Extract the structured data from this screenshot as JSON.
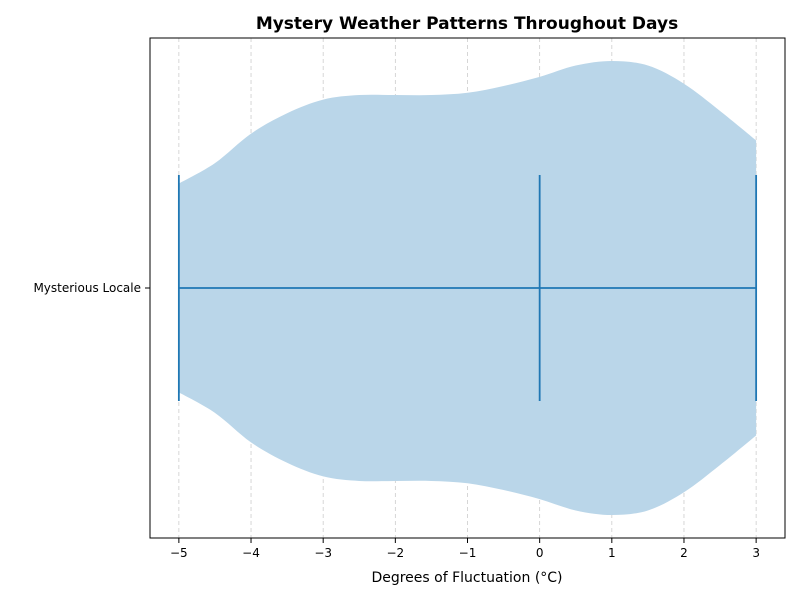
{
  "chart_data": {
    "type": "violin",
    "orientation": "horizontal",
    "title": "Mystery Weather Patterns Throughout Days",
    "xlabel": "Degrees of Fluctuation (°C)",
    "ylabel": "",
    "categories": [
      "Mysterious Locale"
    ],
    "xlim": [
      -5.4,
      3.4
    ],
    "xticks": [
      -5,
      -4,
      -3,
      -2,
      -1,
      0,
      1,
      2,
      3
    ],
    "xtick_labels": [
      "−5",
      "−4",
      "−3",
      "−2",
      "−1",
      "0",
      "1",
      "2",
      "3"
    ],
    "grid": {
      "x": true,
      "y": false,
      "style": "dashed"
    },
    "series": [
      {
        "category": "Mysterious Locale",
        "min": -5,
        "median": 0,
        "max": 3,
        "density": {
          "x": [
            -5,
            -4.5,
            -4,
            -3.5,
            -3,
            -2.5,
            -2,
            -1.5,
            -1,
            -0.5,
            0,
            0.5,
            1,
            1.5,
            2,
            2.5,
            3
          ],
          "width": [
            0.46,
            0.55,
            0.68,
            0.77,
            0.83,
            0.85,
            0.85,
            0.85,
            0.86,
            0.89,
            0.93,
            0.98,
            1.0,
            0.98,
            0.9,
            0.78,
            0.65
          ]
        }
      }
    ],
    "colors": {
      "body": "#bad6e9",
      "lines": "#1f77b4",
      "grid": "#cccccc"
    }
  }
}
